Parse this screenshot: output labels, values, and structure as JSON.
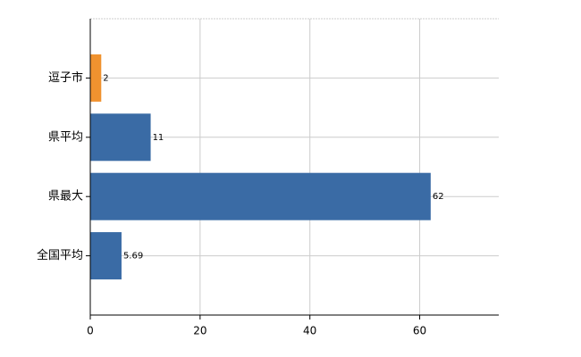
{
  "chart_data": {
    "type": "hbar",
    "categories": [
      "逗子市",
      "県平均",
      "県最大",
      "全国平均"
    ],
    "values": [
      2,
      11,
      62,
      5.69
    ],
    "colors": [
      "#f0922f",
      "#3a6ba5",
      "#3a6ba5",
      "#3a6ba5"
    ],
    "xlim": [
      0,
      74.4
    ],
    "xticks": [
      0,
      20,
      40,
      60
    ],
    "grid": true
  }
}
